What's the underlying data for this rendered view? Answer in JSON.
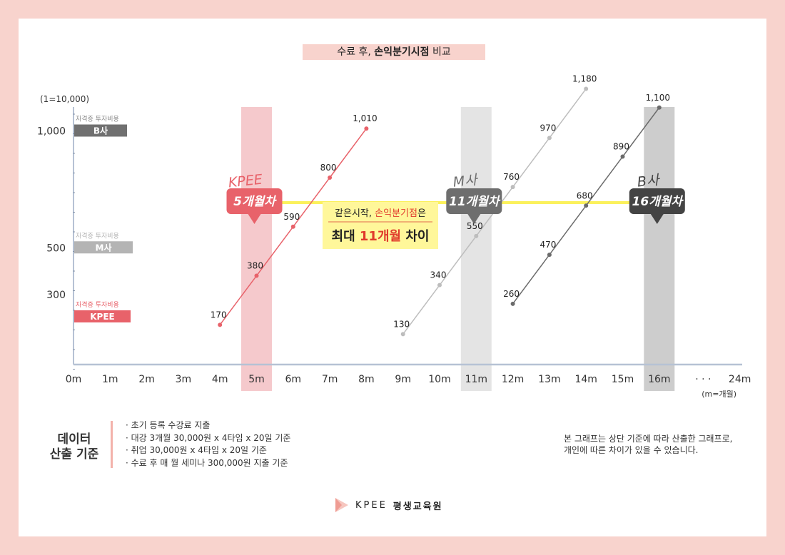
{
  "title": {
    "prefix": "수료 후,",
    "bold": "손익분기시점",
    "suffix": "비교"
  },
  "colors": {
    "kpee": "#e8626a",
    "m_company": "#b4b4b4",
    "b_company": "#666666",
    "highlight_line": "#fbf15c",
    "callout_bg": "#fff79a",
    "accent_red": "#e03a2c"
  },
  "chart_data": {
    "type": "line",
    "unit_label": "(1=10,000)",
    "x_unit_label": "(m=개월)",
    "x_ticks": [
      "0m",
      "1m",
      "2m",
      "3m",
      "4m",
      "5m",
      "6m",
      "7m",
      "8m",
      "9m",
      "10m",
      "11m",
      "12m",
      "13m",
      "14m",
      "15m",
      "16m",
      "· · ·",
      "24m"
    ],
    "highlight_ticks": [
      "5m",
      "11m",
      "16m"
    ],
    "y_ticks": [
      {
        "label": "1,000",
        "value": 1000
      },
      {
        "label": "500",
        "value": 500
      },
      {
        "label": "300",
        "value": 300
      }
    ],
    "cost_labels": [
      {
        "caption": "자격증 투자비용",
        "name": "B사",
        "value": 1000,
        "color": "#707070",
        "caption_color": "#8a8a8a"
      },
      {
        "caption": "자격증 투자비용",
        "name": "M사",
        "value": 500,
        "color": "#b4b4b4",
        "caption_color": "#b4b4b4"
      },
      {
        "caption": "자격증 투자비용",
        "name": "KPEE",
        "value": 200,
        "color": "#e8626a",
        "caption_color": "#e8626a"
      }
    ],
    "series": [
      {
        "name": "KPEE",
        "color": "#e8626a",
        "points": [
          {
            "x": 4,
            "y": 170
          },
          {
            "x": 5,
            "y": 380
          },
          {
            "x": 6,
            "y": 590
          },
          {
            "x": 7,
            "y": 800
          },
          {
            "x": 8,
            "y": 1010
          }
        ],
        "labels": [
          "170",
          "380",
          "590",
          "800",
          "1,010"
        ]
      },
      {
        "name": "M사",
        "color": "#bdbdbd",
        "points": [
          {
            "x": 9,
            "y": 130
          },
          {
            "x": 10,
            "y": 340
          },
          {
            "x": 11,
            "y": 550
          },
          {
            "x": 12,
            "y": 760
          },
          {
            "x": 13,
            "y": 970
          },
          {
            "x": 14,
            "y": 1180
          }
        ],
        "labels": [
          "130",
          "340",
          "550",
          "760",
          "970",
          "1,180"
        ]
      },
      {
        "name": "B사",
        "color": "#6b6b6b",
        "points": [
          {
            "x": 12,
            "y": 260
          },
          {
            "x": 13,
            "y": 470
          },
          {
            "x": 14,
            "y": 680
          },
          {
            "x": 15,
            "y": 890
          },
          {
            "x": 16,
            "y": 1100
          }
        ],
        "labels": [
          "260",
          "470",
          "680",
          "890",
          "1,100"
        ]
      }
    ],
    "breakeven_markers": [
      {
        "company": "KPEE",
        "label": "5개월차",
        "month": 5,
        "color": "#e8626a",
        "band": "#f5c9cc"
      },
      {
        "company": "M사",
        "label": "11개월차",
        "month": 11,
        "color": "#6e6e6e",
        "band": "#e4e4e4"
      },
      {
        "company": "B사",
        "label": "16개월차",
        "month": 16,
        "color": "#444444",
        "band": "#cdcdcd"
      }
    ],
    "callout": {
      "line1_prefix": "같은시작,",
      "line1_accent": "손익분기점",
      "line1_suffix": "은",
      "line2_prefix": "최대",
      "line2_accent": "11개월",
      "line2_suffix": "차이"
    }
  },
  "footer": {
    "heading_line1": "데이터",
    "heading_line2": "산출 기준",
    "items": [
      "초기 등록 수강료 지출",
      "대강 3개월 30,000원 x 4타임 x 20일 기준",
      "취업 30,000원 x 4타임 x 20일 기준",
      "수료 후 매 월 세미나 300,000원 지출 기준"
    ],
    "note_line1": "본 그래프는 상단 기준에 따라 산출한 그래프로,",
    "note_line2": "개인에 따른 차이가 있을 수 있습니다.",
    "brand_name": "KPEE",
    "brand_suffix": "평생교육원"
  }
}
